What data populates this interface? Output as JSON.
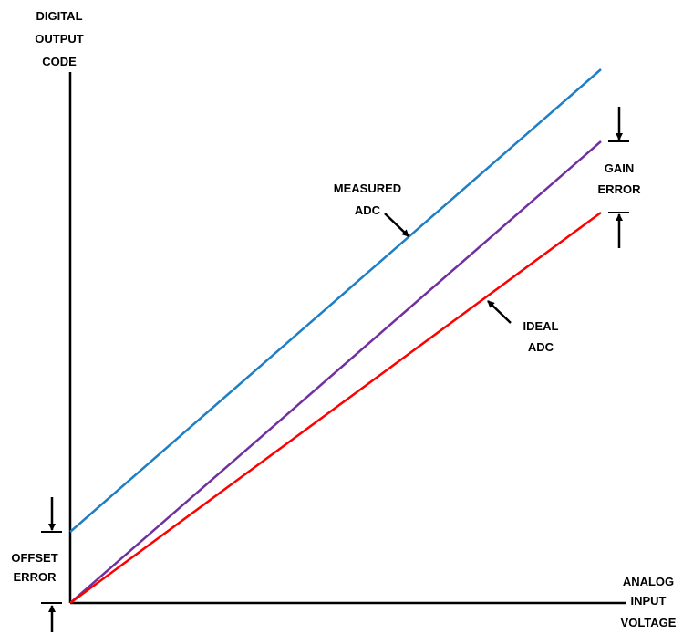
{
  "axes": {
    "y_label": [
      "DIGITAL",
      "OUTPUT",
      "CODE"
    ],
    "x_label": [
      "ANALOG",
      "INPUT",
      "VOLTAGE"
    ]
  },
  "lines": {
    "measured": {
      "label": [
        "MEASURED",
        "ADC"
      ],
      "color": "#1f7fc4"
    },
    "gain_only": {
      "color": "#7030a0"
    },
    "ideal": {
      "label": [
        "IDEAL",
        "ADC"
      ],
      "color": "#ff0000"
    }
  },
  "annotations": {
    "gain_error": [
      "GAIN",
      "ERROR"
    ],
    "offset_error": [
      "OFFSET",
      "ERROR"
    ]
  }
}
